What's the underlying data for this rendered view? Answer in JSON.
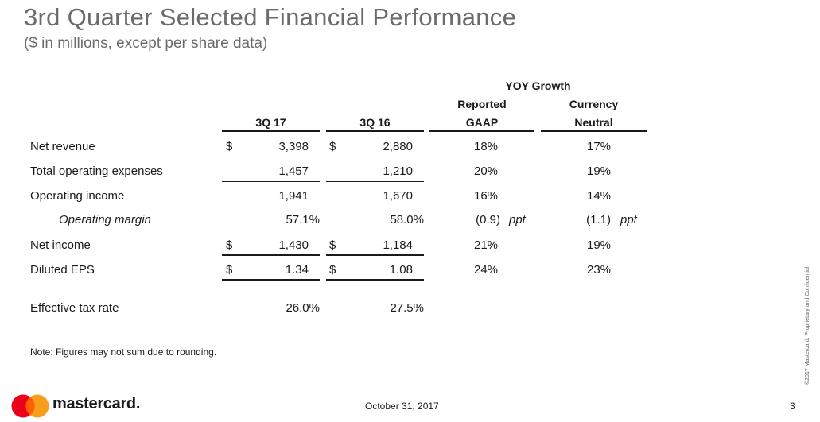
{
  "header": {
    "title": "3rd Quarter Selected Financial Performance",
    "subtitle": "($ in millions, except per share data)"
  },
  "table": {
    "col_headers": {
      "q17": "3Q 17",
      "q16": "3Q 16",
      "yoy_group": "YOY Growth",
      "reported_line1": "Reported",
      "reported_line2": "GAAP",
      "currency_line1": "Currency",
      "currency_line2": "Neutral"
    },
    "rows": [
      {
        "label": "Net revenue",
        "cur17": "$",
        "v17": "3,398",
        "cur16": "$",
        "v16": "2,880",
        "reported": "18%",
        "neutral": "17%"
      },
      {
        "label": "Total operating expenses",
        "v17": "1,457",
        "v16": "1,210",
        "reported": "20%",
        "neutral": "19%"
      },
      {
        "label": "Operating income",
        "v17": "1,941",
        "v16": "1,670",
        "reported": "16%",
        "neutral": "14%"
      },
      {
        "label": "Operating margin",
        "v17": "57.1%",
        "v16": "58.0%",
        "reported": "(0.9)",
        "reported_unit": "ppt",
        "neutral": "(1.1)",
        "neutral_unit": "ppt"
      },
      {
        "label": "Net income",
        "cur17": "$",
        "v17": "1,430",
        "cur16": "$",
        "v16": "1,184",
        "reported": "21%",
        "neutral": "19%"
      },
      {
        "label": "Diluted EPS",
        "cur17": "$",
        "v17": "1.34",
        "cur16": "$",
        "v16": "1.08",
        "reported": "24%",
        "neutral": "23%"
      },
      {
        "label": "Effective tax rate",
        "v17": "26.0%",
        "v16": "27.5%"
      }
    ]
  },
  "note": "Note: Figures may not sum due to rounding.",
  "footer": {
    "brand": "mastercard.",
    "date": "October 31, 2017",
    "page_number": "3",
    "vertical_text": "©2017 Mastercard. Proprietary and Confidential"
  },
  "colors": {
    "title_gray": "#6b6b6b",
    "logo_red": "#eb001b",
    "logo_orange": "#f79e1b",
    "logo_overlap": "#ff5f00"
  }
}
